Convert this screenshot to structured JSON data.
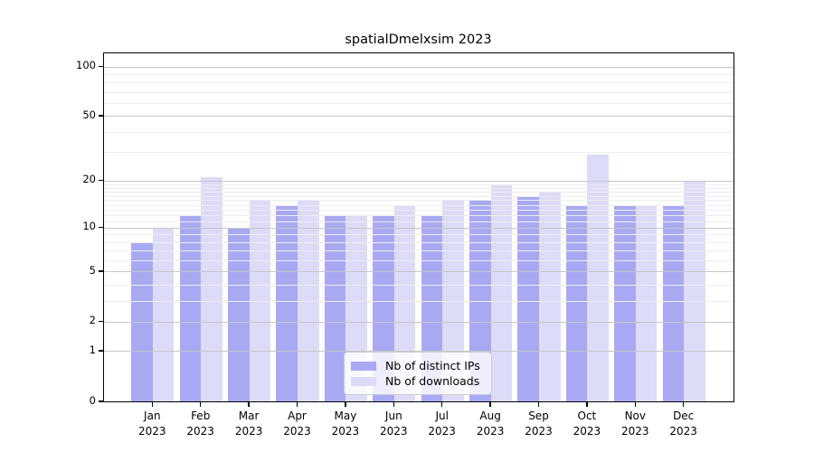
{
  "title": "spatialDmelxsim 2023",
  "colors": {
    "distinct_ips_bar": "#a9a9f3",
    "downloads_bar": "#dcdcf8",
    "grid_major": "#c6c6c6",
    "grid_minor": "#ededed",
    "axis": "#000000",
    "background": "#ffffff",
    "legend_border": "#cccccc"
  },
  "chart_data": {
    "type": "bar",
    "title": "spatialDmelxsim 2023",
    "categories": [
      "Jan 2023",
      "Feb 2023",
      "Mar 2023",
      "Apr 2023",
      "May 2023",
      "Jun 2023",
      "Jul 2023",
      "Aug 2023",
      "Sep 2023",
      "Oct 2023",
      "Nov 2023",
      "Dec 2023"
    ],
    "series": [
      {
        "name": "Nb of distinct IPs",
        "color": "#a9a9f3",
        "values": [
          8,
          12,
          10,
          14,
          12,
          12,
          12,
          15,
          16,
          14,
          14,
          14
        ]
      },
      {
        "name": "Nb of downloads",
        "color": "#dcdcf8",
        "values": [
          10,
          21,
          15,
          15,
          12,
          14,
          15,
          19,
          17,
          29,
          14,
          20
        ]
      }
    ],
    "xlabel": "",
    "ylabel": "",
    "yscale": "log1p",
    "ylim": [
      0,
      120
    ],
    "yticks": [
      0,
      1,
      2,
      5,
      10,
      20,
      50,
      100
    ],
    "yticks_minor": [
      3,
      4,
      6,
      7,
      8,
      9,
      11,
      12,
      13,
      14,
      15,
      16,
      17,
      18,
      19,
      30,
      40,
      60,
      70,
      80,
      90
    ],
    "grid": true,
    "legend_position": "lower center"
  }
}
